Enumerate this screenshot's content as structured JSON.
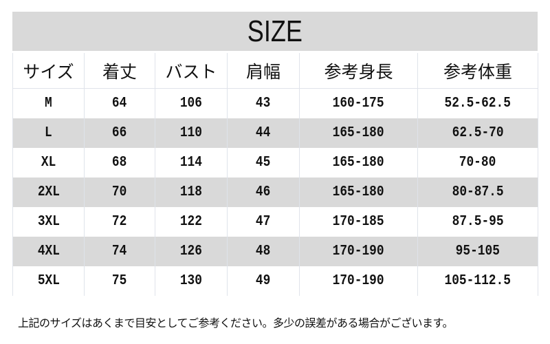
{
  "title": "SIZE",
  "headers": [
    "サイズ",
    "着丈",
    "バスト",
    "肩幅",
    "参考身長",
    "参考体重"
  ],
  "rows": [
    [
      "M",
      "64",
      "106",
      "43",
      "160-175",
      "52.5-62.5"
    ],
    [
      "L",
      "66",
      "110",
      "44",
      "165-180",
      "62.5-70"
    ],
    [
      "XL",
      "68",
      "114",
      "45",
      "165-180",
      "70-80"
    ],
    [
      "2XL",
      "70",
      "118",
      "46",
      "165-180",
      "80-87.5"
    ],
    [
      "3XL",
      "72",
      "122",
      "47",
      "170-185",
      "87.5-95"
    ],
    [
      "4XL",
      "74",
      "126",
      "48",
      "170-190",
      "95-105"
    ],
    [
      "5XL",
      "75",
      "130",
      "49",
      "170-190",
      "105-112.5"
    ]
  ],
  "note": "上記のサイズはあくまで目安としてご参考ください。多少の誤差がある場合がございます。",
  "colors": {
    "stripe": "#d9d9d9",
    "text": "#111111"
  }
}
